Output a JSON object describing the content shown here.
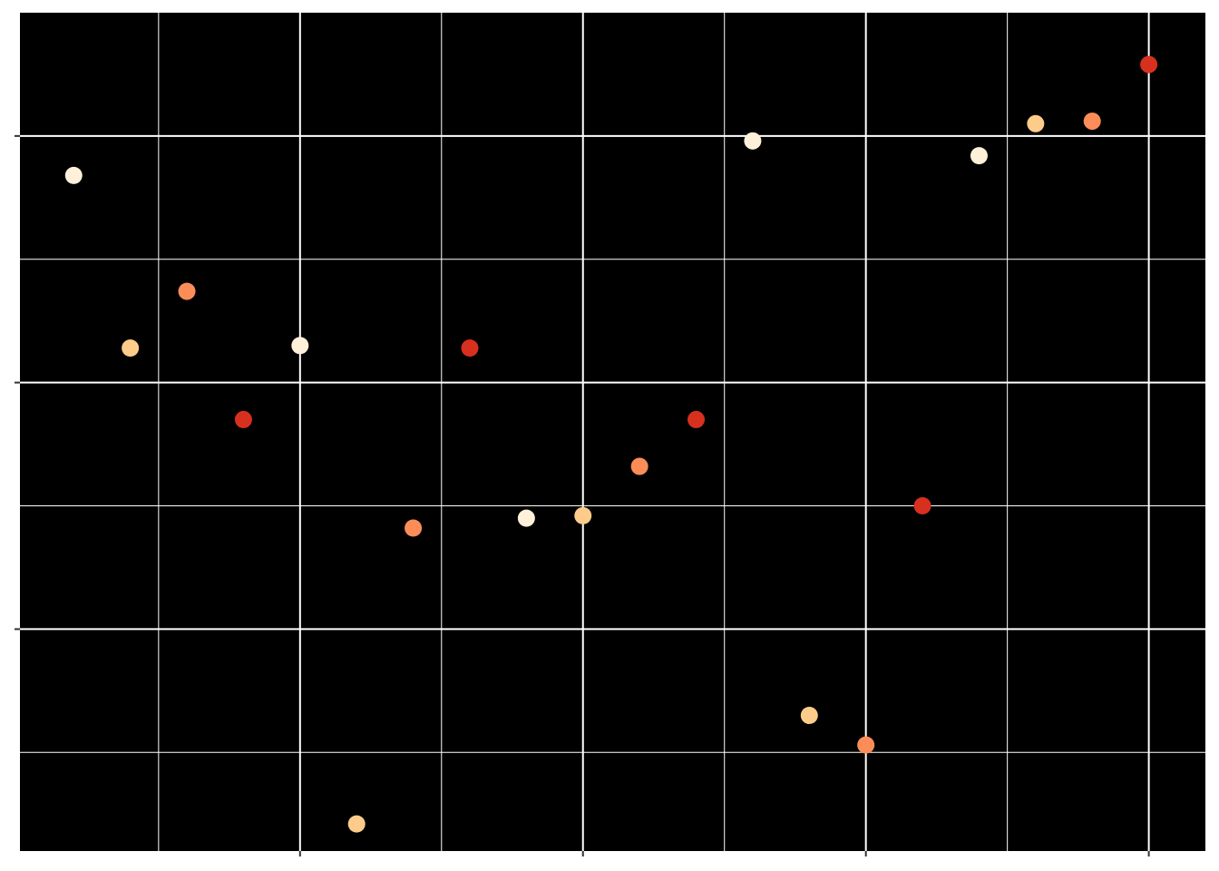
{
  "chart_data": {
    "type": "scatter",
    "title": "",
    "xlabel": "",
    "ylabel": "",
    "xlim": [
      0.05,
      21.0
    ],
    "ylim": [
      -2.9,
      0.5
    ],
    "x_major_ticks": [
      5,
      10,
      15,
      20
    ],
    "x_minor_ticks": [
      2.5,
      7.5,
      12.5,
      17.5
    ],
    "y_major_ticks": [
      -2,
      -1,
      0
    ],
    "y_minor_ticks": [
      -2.5,
      -1.5,
      -0.5
    ],
    "grid": true,
    "background": "#000000",
    "grid_color": "#ffffff",
    "palette": [
      "#FEF0D9",
      "#FDCC8A",
      "#FC8D59",
      "#D7301F"
    ],
    "points": [
      {
        "x": 1,
        "y": -0.16,
        "c": 0
      },
      {
        "x": 2,
        "y": -0.86,
        "c": 1
      },
      {
        "x": 3,
        "y": -0.63,
        "c": 2
      },
      {
        "x": 4,
        "y": -1.15,
        "c": 3
      },
      {
        "x": 5,
        "y": -0.85,
        "c": 0
      },
      {
        "x": 6,
        "y": -2.79,
        "c": 1
      },
      {
        "x": 7,
        "y": -1.59,
        "c": 2
      },
      {
        "x": 8,
        "y": -0.86,
        "c": 3
      },
      {
        "x": 9,
        "y": -1.55,
        "c": 0
      },
      {
        "x": 10,
        "y": -1.54,
        "c": 1
      },
      {
        "x": 11,
        "y": -1.34,
        "c": 2
      },
      {
        "x": 12,
        "y": -1.15,
        "c": 3
      },
      {
        "x": 13,
        "y": -0.02,
        "c": 0
      },
      {
        "x": 14,
        "y": -2.35,
        "c": 1
      },
      {
        "x": 15,
        "y": -2.47,
        "c": 2
      },
      {
        "x": 16,
        "y": -1.5,
        "c": 3
      },
      {
        "x": 17,
        "y": -0.08,
        "c": 0
      },
      {
        "x": 18,
        "y": 0.05,
        "c": 1
      },
      {
        "x": 19,
        "y": 0.06,
        "c": 2
      },
      {
        "x": 20,
        "y": 0.29,
        "c": 3
      }
    ]
  }
}
